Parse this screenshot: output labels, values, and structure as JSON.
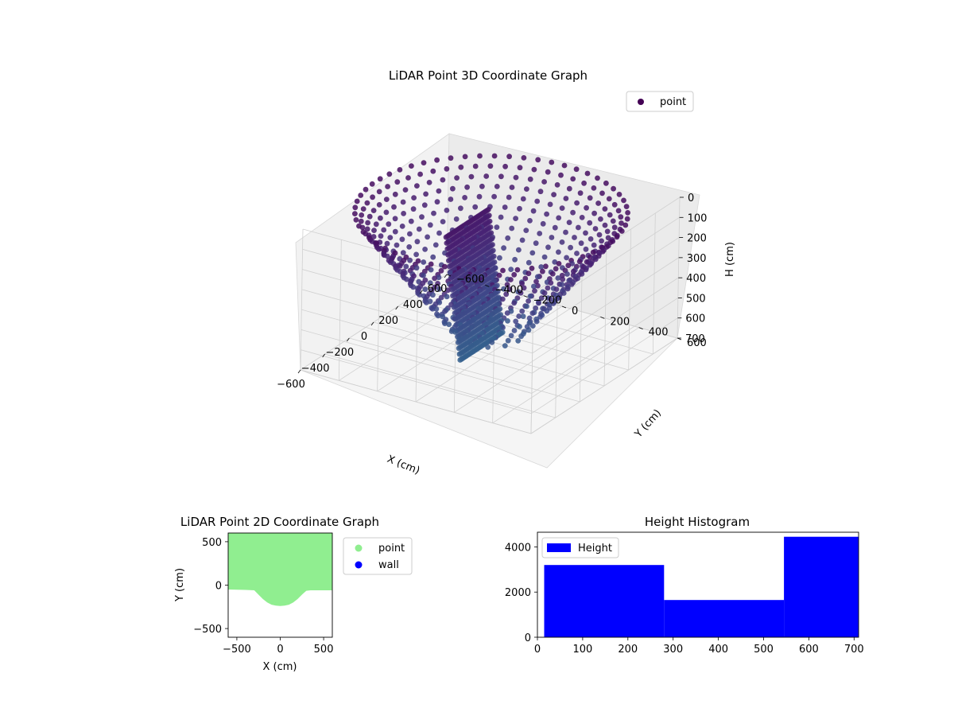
{
  "chart_data": [
    {
      "type": "scatter3d",
      "title": "LiDAR Point 3D Coordinate Graph",
      "xlabel": "X (cm)",
      "ylabel": "Y (cm)",
      "zlabel": "H (cm)",
      "xlim": [
        -600,
        600
      ],
      "ylim": [
        -600,
        600
      ],
      "zlim": [
        0,
        700
      ],
      "z_inverted": true,
      "x_ticks": [
        -600,
        -400,
        -200,
        0,
        200,
        400,
        600
      ],
      "y_ticks": [
        -600,
        -400,
        -200,
        0,
        200,
        400,
        600
      ],
      "z_ticks": [
        0,
        100,
        200,
        300,
        400,
        500,
        600,
        700
      ],
      "grid": true,
      "colormap": "viridis",
      "legend": {
        "entries": [
          "point"
        ],
        "placement": "top-right"
      },
      "series": [
        {
          "name": "point",
          "color": "#440154",
          "description_shape": "bowl",
          "rim_height": 0,
          "floor_height": 700,
          "rim_radius": 600
        }
      ]
    },
    {
      "type": "scatter",
      "title": "LiDAR Point 2D Coordinate Graph",
      "xlabel": "X (cm)",
      "ylabel": "Y (cm)",
      "xlim": [
        -600,
        600
      ],
      "ylim": [
        -600,
        600
      ],
      "x_ticks": [
        -500,
        0,
        500
      ],
      "y_ticks": [
        -500,
        0,
        500
      ],
      "legend": {
        "entries": [
          "point",
          "wall"
        ],
        "placement": "outside-right"
      },
      "series": [
        {
          "name": "point",
          "color": "#90ee90",
          "boundary_x": [
            -600,
            -400,
            -300,
            -250,
            -200,
            -150,
            -100,
            -50,
            0,
            50,
            100,
            150,
            200,
            250,
            300,
            350,
            400,
            600
          ],
          "boundary_y": [
            -50,
            -55,
            -60,
            -110,
            -160,
            -200,
            -225,
            -235,
            -240,
            -235,
            -225,
            -200,
            -160,
            -110,
            -65,
            -60,
            -60,
            -60
          ]
        },
        {
          "name": "wall",
          "color": "#0000ff"
        }
      ]
    },
    {
      "type": "bar",
      "title": "Height Histogram",
      "xlabel": "",
      "ylabel": "",
      "xlim": [
        0,
        710
      ],
      "ylim": [
        0,
        4650
      ],
      "x_ticks": [
        0,
        100,
        200,
        300,
        400,
        500,
        600,
        700
      ],
      "y_ticks": [
        0,
        2000,
        4000
      ],
      "legend": {
        "entries": [
          "Height"
        ],
        "placement": "top-left"
      },
      "series": [
        {
          "name": "Height",
          "color": "#0000ff",
          "bins": [
            [
              15,
              280,
              3200
            ],
            [
              280,
              545,
              1650
            ],
            [
              545,
              710,
              4450
            ]
          ]
        }
      ]
    }
  ]
}
